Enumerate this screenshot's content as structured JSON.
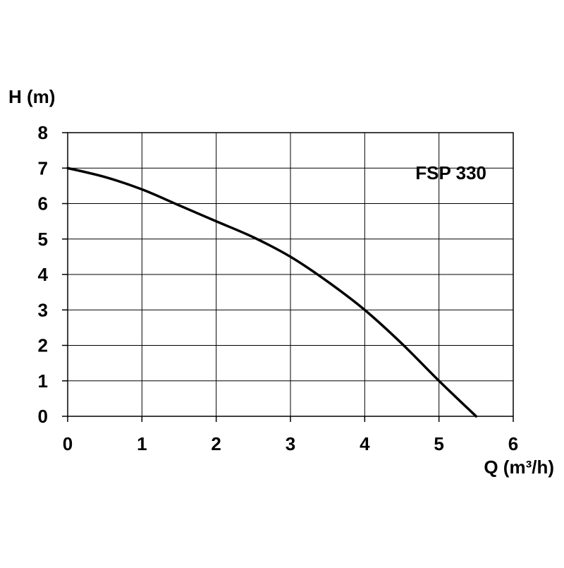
{
  "chart_data": {
    "type": "line",
    "title": "",
    "xlabel": "Q (m³/h)",
    "ylabel": "H (m)",
    "xlim": [
      0,
      6
    ],
    "ylim": [
      0,
      8
    ],
    "x_ticks": [
      "0",
      "1",
      "2",
      "3",
      "4",
      "5",
      "6"
    ],
    "y_ticks": [
      "0",
      "1",
      "2",
      "3",
      "4",
      "5",
      "6",
      "7",
      "8"
    ],
    "grid": true,
    "legend": "none",
    "annotations": [
      "FSP 330"
    ],
    "series": [
      {
        "color": "#000000",
        "x": [
          0,
          0.5,
          1,
          1.5,
          2,
          2.5,
          3,
          3.5,
          4,
          4.5,
          5,
          5.5
        ],
        "y": [
          7,
          6.75,
          6.4,
          5.95,
          5.5,
          5.05,
          4.5,
          3.8,
          3,
          2.05,
          1,
          0
        ]
      }
    ]
  }
}
